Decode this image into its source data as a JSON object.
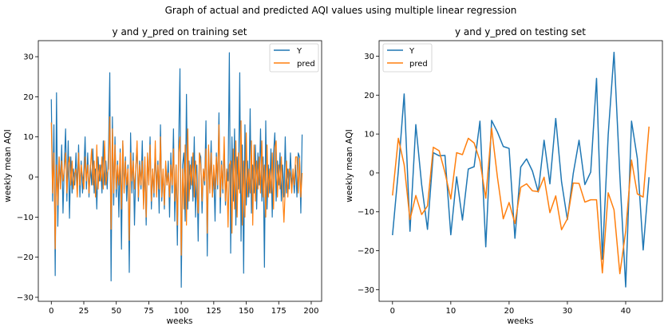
{
  "figure": {
    "suptitle": "Graph of actual and predicted AQI values using multiple linear regression"
  },
  "colors": {
    "Y": "#1f77b4",
    "pred": "#ff7f0e",
    "axes": "#000000",
    "legend_border": "#cccccc"
  },
  "chart_data": [
    {
      "type": "line",
      "title": "y and y_pred on training set",
      "xlabel": "weeks",
      "ylabel": "weekly mean AQI",
      "xlim": [
        -10,
        208
      ],
      "ylim": [
        -31,
        34
      ],
      "xticks": [
        0,
        25,
        50,
        75,
        100,
        125,
        150,
        175,
        200
      ],
      "yticks": [
        -30,
        -20,
        -10,
        0,
        10,
        20,
        30
      ],
      "grid": false,
      "legend": "top-right",
      "series": [
        {
          "name": "Y",
          "values": [
            19.4,
            -6,
            13,
            -24.6,
            21,
            -12.3,
            5,
            -2,
            8,
            -9,
            3,
            12,
            -6,
            9,
            -10.3,
            5,
            -4,
            2,
            -2,
            6,
            -3,
            8,
            -5,
            4,
            -4,
            1,
            10,
            -3,
            6,
            -5,
            3,
            -2,
            7,
            -4,
            2,
            -8,
            5,
            -1,
            3,
            -4,
            9,
            -2,
            4,
            -3,
            6,
            26,
            -25.9,
            15,
            -7,
            10,
            -5,
            4,
            -10,
            7,
            -18,
            9,
            -3,
            5,
            -6,
            3,
            -23.8,
            11,
            -4,
            6,
            -12,
            2,
            8,
            -6,
            4,
            -3,
            9,
            -7,
            3,
            -12,
            5,
            -1,
            10,
            -8,
            2,
            -5,
            7,
            -3,
            4,
            -9,
            13,
            -6,
            1,
            -8,
            3,
            -2,
            4,
            -10,
            6,
            -4,
            12,
            -11,
            3,
            -17,
            8,
            27,
            -27.5,
            3,
            6,
            -11,
            20.6,
            -8,
            4,
            -3,
            5,
            -6,
            10,
            -10,
            3,
            -16,
            6,
            5,
            -9,
            2,
            -2,
            14,
            -19.7,
            7,
            -3,
            9,
            -5,
            1,
            -11,
            6,
            -3,
            16,
            -9,
            4,
            -4,
            8,
            -7,
            2,
            -1,
            31,
            -19,
            10,
            -6,
            12,
            -12,
            5,
            -3,
            26,
            -16,
            8,
            -24,
            13,
            -7,
            4,
            -5,
            17,
            -9,
            3,
            -4,
            8,
            -8,
            6,
            -2,
            12,
            -6,
            5,
            -22.5,
            14,
            -8,
            3,
            -4,
            7,
            -10,
            6,
            11,
            -6,
            4,
            -2,
            6,
            -6,
            3,
            -5,
            10,
            -4,
            2,
            -3,
            6,
            -2,
            1,
            -4,
            3,
            -5,
            6,
            5,
            -9,
            10.6
          ]
        },
        {
          "name": "pred",
          "values": [
            13.6,
            -4,
            6,
            -17.9,
            3,
            -7,
            5,
            -3,
            4,
            -1,
            2,
            6,
            -4,
            3,
            5,
            -2,
            4,
            -3,
            1,
            2,
            -5,
            6,
            -2,
            3,
            0,
            -3,
            5,
            -1,
            3,
            -4,
            2,
            7,
            -2,
            4,
            -5,
            8,
            -3,
            3,
            -1,
            5,
            -3,
            9,
            -2,
            1,
            2,
            15,
            -13,
            12,
            -4,
            8,
            -3,
            3,
            -2,
            6,
            -8,
            9,
            -4,
            4,
            -2,
            2,
            -15.8,
            6,
            -1,
            4,
            -3,
            2,
            9,
            -5,
            3,
            -2,
            4,
            -8,
            5,
            -10,
            6,
            -2,
            8,
            -6,
            2,
            -4,
            9,
            -5,
            3,
            -3,
            10,
            -5,
            2,
            -7,
            4,
            -2,
            1,
            -5,
            3,
            -2,
            7,
            -6,
            3,
            -12,
            6,
            10,
            -19.5,
            2,
            -8,
            8,
            -12,
            12,
            -6,
            3,
            -2,
            6,
            -5,
            4,
            -3,
            -9,
            6,
            3,
            -6,
            2,
            -1,
            7,
            -14,
            8,
            -4,
            6,
            -5,
            3,
            -3,
            5,
            -2,
            13,
            -5,
            3,
            -3,
            10,
            -6,
            2,
            -12.5,
            3,
            4,
            -14,
            7,
            -8,
            9,
            -10,
            6,
            -4,
            14,
            -12,
            4,
            -10,
            11,
            -5,
            2,
            -4,
            9,
            -12,
            8,
            -6,
            4,
            -3,
            5,
            -4,
            9,
            -5,
            3,
            -10,
            8,
            -5,
            2,
            -4,
            6,
            -8,
            7,
            9,
            -5,
            3,
            -3,
            5,
            -4,
            -11.3,
            -3,
            4,
            -5,
            2,
            1,
            -4,
            2,
            -2,
            5,
            5,
            -4,
            4.7,
            -5,
            1
          ]
        }
      ]
    },
    {
      "type": "line",
      "title": "y and y_pred on testing set",
      "xlabel": "weeks",
      "ylabel": "weekly mean AQI",
      "xlim": [
        -2.3,
        46.3
      ],
      "ylim": [
        -33,
        34
      ],
      "xticks": [
        0,
        10,
        20,
        30,
        40
      ],
      "yticks": [
        -30,
        -20,
        -10,
        0,
        10,
        20,
        30
      ],
      "grid": false,
      "legend": "top-left",
      "series": [
        {
          "name": "Y",
          "x": [
            0,
            1,
            2,
            3,
            4,
            5,
            6,
            7,
            8,
            9,
            10,
            11,
            12,
            13,
            14,
            15,
            16,
            17,
            18,
            19,
            20,
            21,
            22,
            23,
            24,
            25,
            26,
            27,
            28,
            29,
            30,
            31,
            32,
            33,
            34,
            35,
            36,
            37,
            38,
            39,
            40,
            41,
            42,
            43,
            44
          ],
          "values": [
            -16,
            0.5,
            20.3,
            -15,
            12.4,
            -3,
            -14.5,
            5.2,
            4.4,
            4.5,
            -15.9,
            -1,
            -12.1,
            1,
            1.6,
            13.3,
            -19,
            13.5,
            10.5,
            6.8,
            6.3,
            -16.8,
            1.5,
            3.6,
            0.5,
            -4.9,
            8.4,
            -2.8,
            14,
            -2.3,
            -12,
            -0.2,
            8.4,
            -3,
            0.2,
            24.3,
            -22.2,
            9.8,
            31,
            -0.7,
            -29.3,
            13.3,
            3.7,
            -19.8,
            -1.1
          ]
        },
        {
          "name": "pred",
          "x": [
            0,
            1,
            2,
            3,
            4,
            5,
            6,
            7,
            8,
            9,
            10,
            11,
            12,
            13,
            14,
            15,
            16,
            17,
            18,
            19,
            20,
            21,
            22,
            23,
            24,
            25,
            26,
            27,
            28,
            29,
            30,
            31,
            32,
            33,
            34,
            35,
            36,
            37,
            38,
            39,
            40,
            41,
            42,
            43,
            44
          ],
          "values": [
            -5.8,
            8.9,
            2.1,
            -12,
            -5.8,
            -10.7,
            -8.5,
            6.6,
            5.7,
            0.1,
            -6.7,
            5.2,
            4.7,
            8.9,
            7.7,
            3.1,
            -6.5,
            11.5,
            -1.1,
            -11.8,
            -7.6,
            -13,
            -3.7,
            -2.8,
            -4.6,
            -4.8,
            -1.1,
            -10.2,
            -5.9,
            -14.6,
            -11.8,
            -2.6,
            -2.7,
            -7.5,
            -6.9,
            -6.9,
            -25.7,
            -5.1,
            -9.5,
            -25.9,
            -15,
            3.3,
            -5.4,
            -6.2,
            11.9
          ]
        }
      ]
    }
  ]
}
